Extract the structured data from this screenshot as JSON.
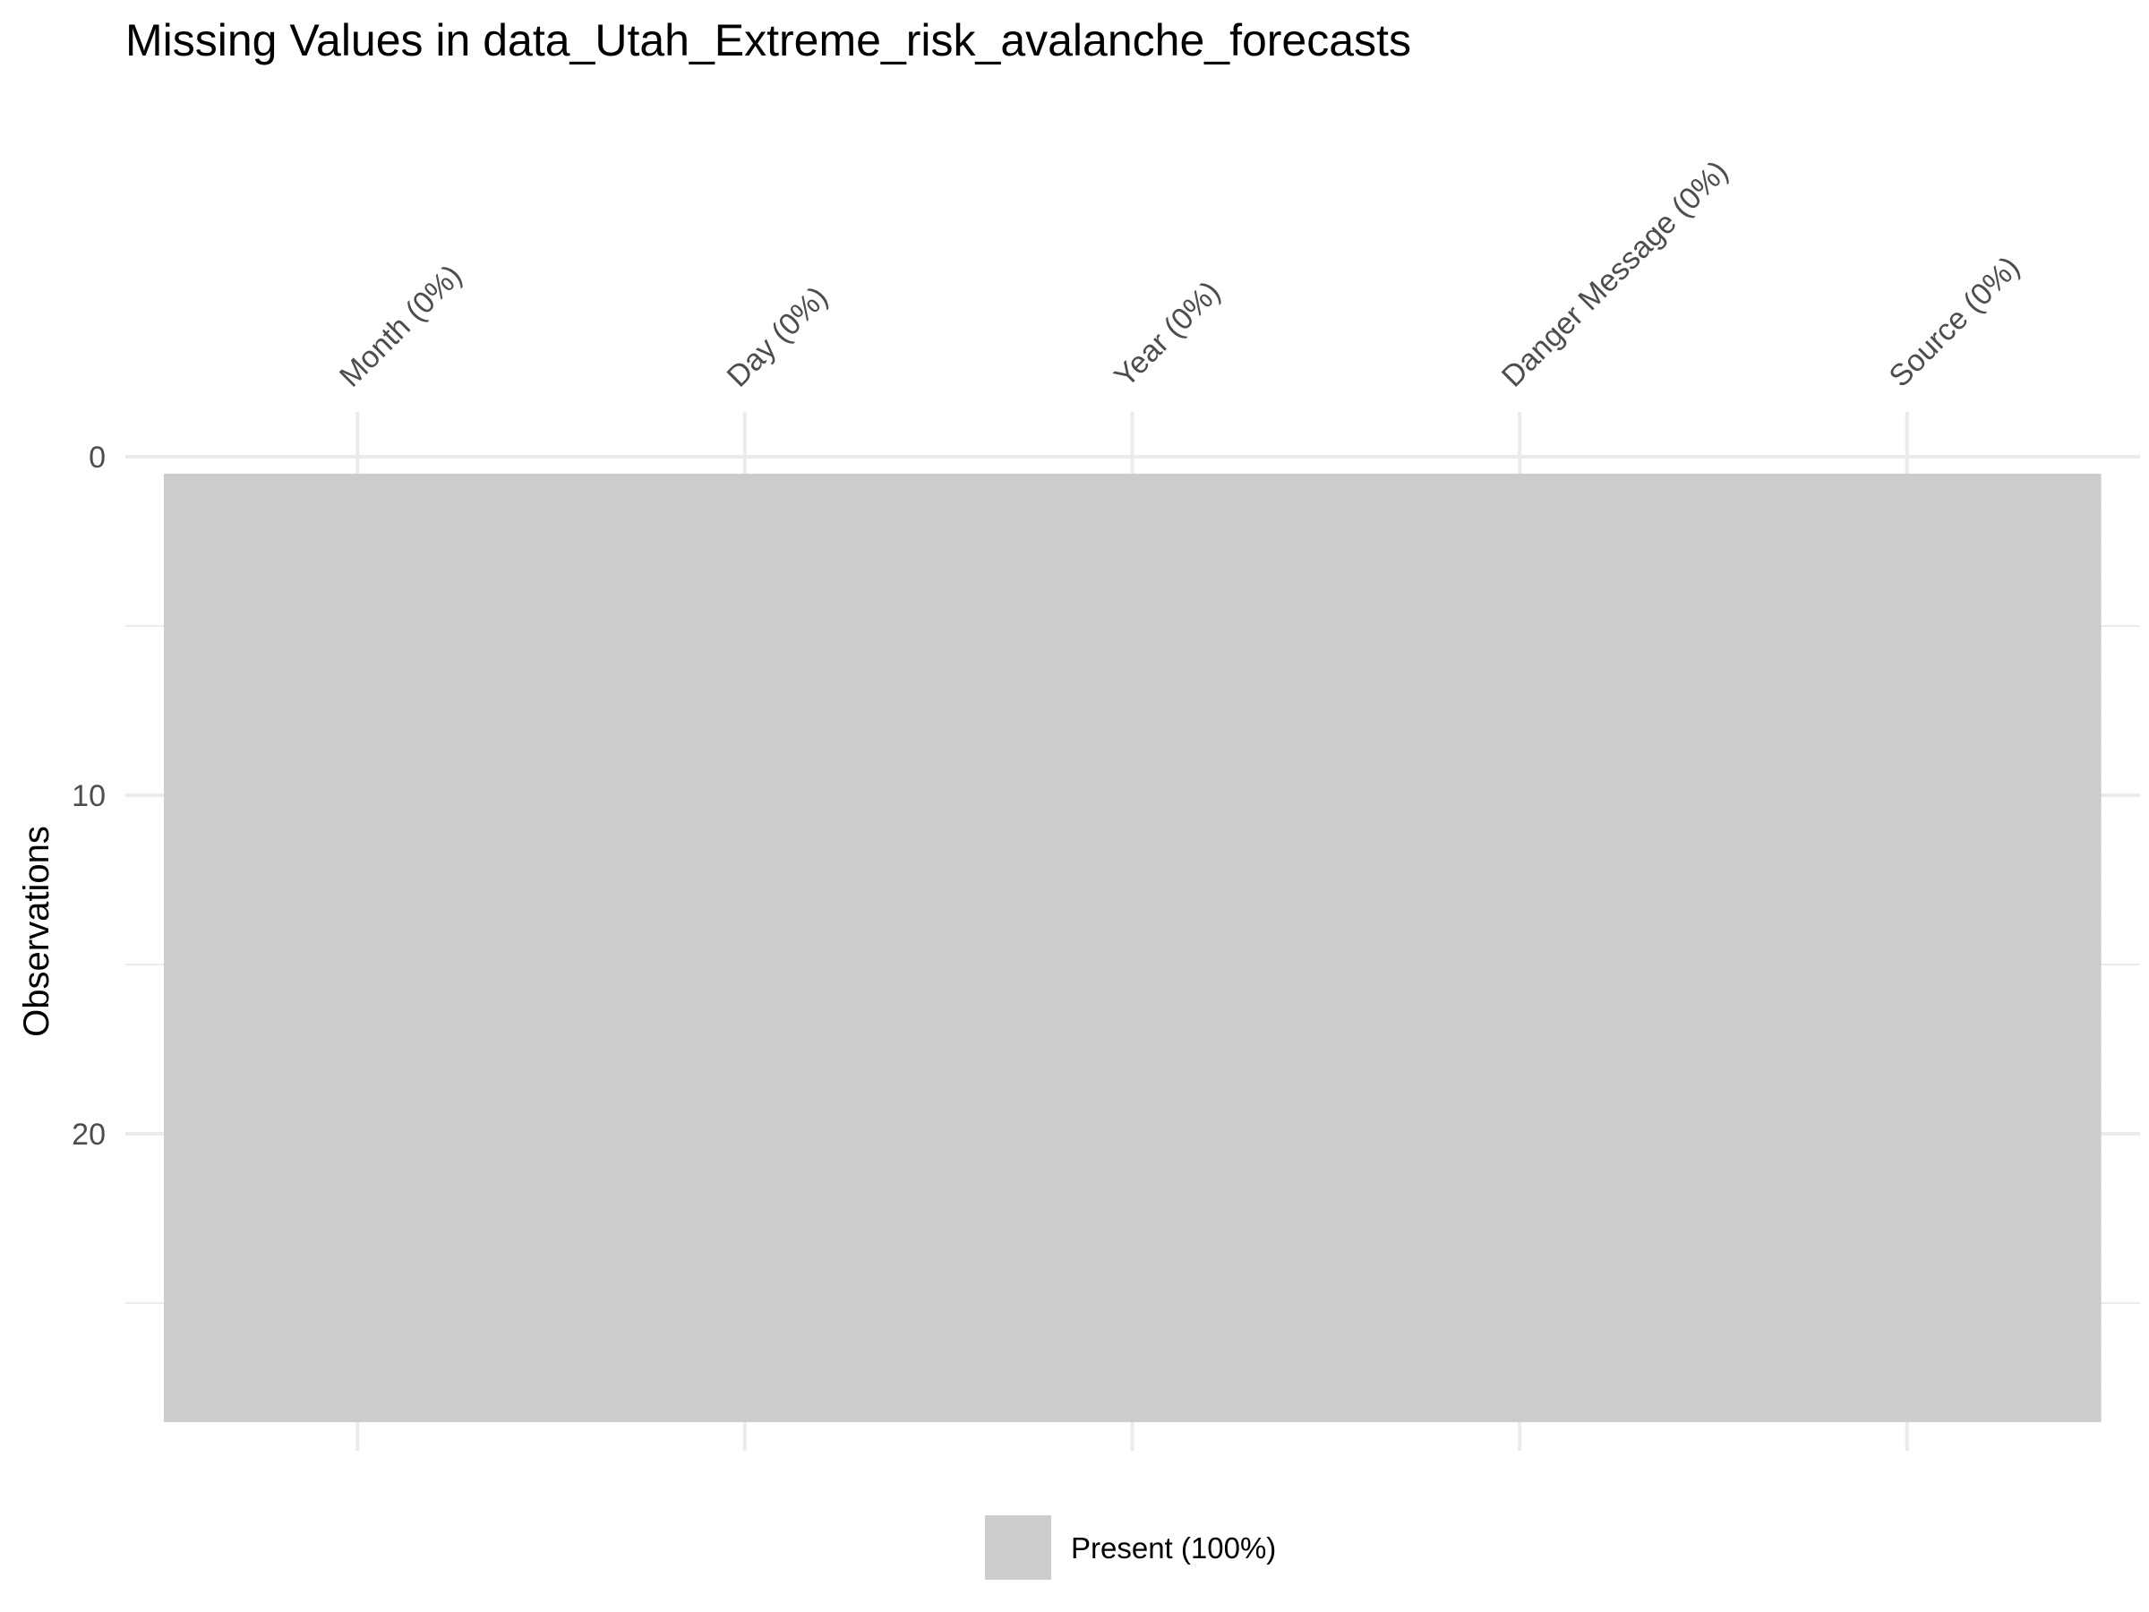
{
  "chart_data": {
    "type": "heatmap",
    "title": "Missing Values in data_Utah_Extreme_risk_avalanche_forecasts",
    "xlabel": "",
    "ylabel": "Observations",
    "columns": [
      "Month (0%)",
      "Day (0%)",
      "Year (0%)",
      "Danger Message (0%)",
      "Source (0%)"
    ],
    "observations": 28,
    "y_ticks": [
      0,
      10,
      20
    ],
    "ylim": [
      0,
      28
    ],
    "y_reversed": true,
    "grid": true,
    "series": [
      {
        "name": "Present (100%)",
        "color": "#cccccc",
        "missing_fraction": [
          0,
          0,
          0,
          0,
          0
        ]
      }
    ],
    "legend": {
      "position": "bottom",
      "entries": [
        "Present (100%)"
      ]
    }
  }
}
